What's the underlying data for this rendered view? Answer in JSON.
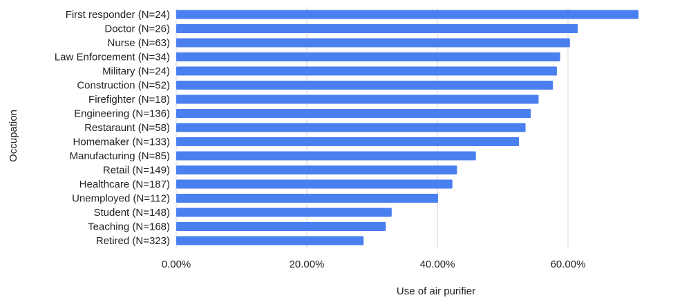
{
  "chart_data": {
    "type": "bar",
    "orientation": "horizontal",
    "xlabel": "Use of air purifier",
    "ylabel": "Occupation",
    "xlim": [
      0,
      0.75
    ],
    "x_ticks": [
      0,
      0.2,
      0.4,
      0.6
    ],
    "x_tick_labels": [
      "0.00%",
      "20.00%",
      "40.00%",
      "60.00%"
    ],
    "grid": "vertical",
    "legend": "none",
    "bar_color": "#4a7ff0",
    "categories": [
      "First responder (N=24)",
      "Doctor (N=26)",
      "Nurse (N=63)",
      "Law Enforcement (N=34)",
      "Military (N=24)",
      "Construction (N=52)",
      "Firefighter (N=18)",
      "Engineering (N=136)",
      "Restaraunt (N=58)",
      "Homemaker (N=133)",
      "Manufacturing (N=85)",
      "Retail (N=149)",
      "Healthcare (N=187)",
      "Unemployed (N=112)",
      "Student (N=148)",
      "Teaching (N=168)",
      "Retired (N=323)"
    ],
    "values": [
      0.708,
      0.615,
      0.603,
      0.588,
      0.583,
      0.577,
      0.555,
      0.543,
      0.535,
      0.525,
      0.459,
      0.43,
      0.423,
      0.401,
      0.33,
      0.321,
      0.287
    ]
  }
}
